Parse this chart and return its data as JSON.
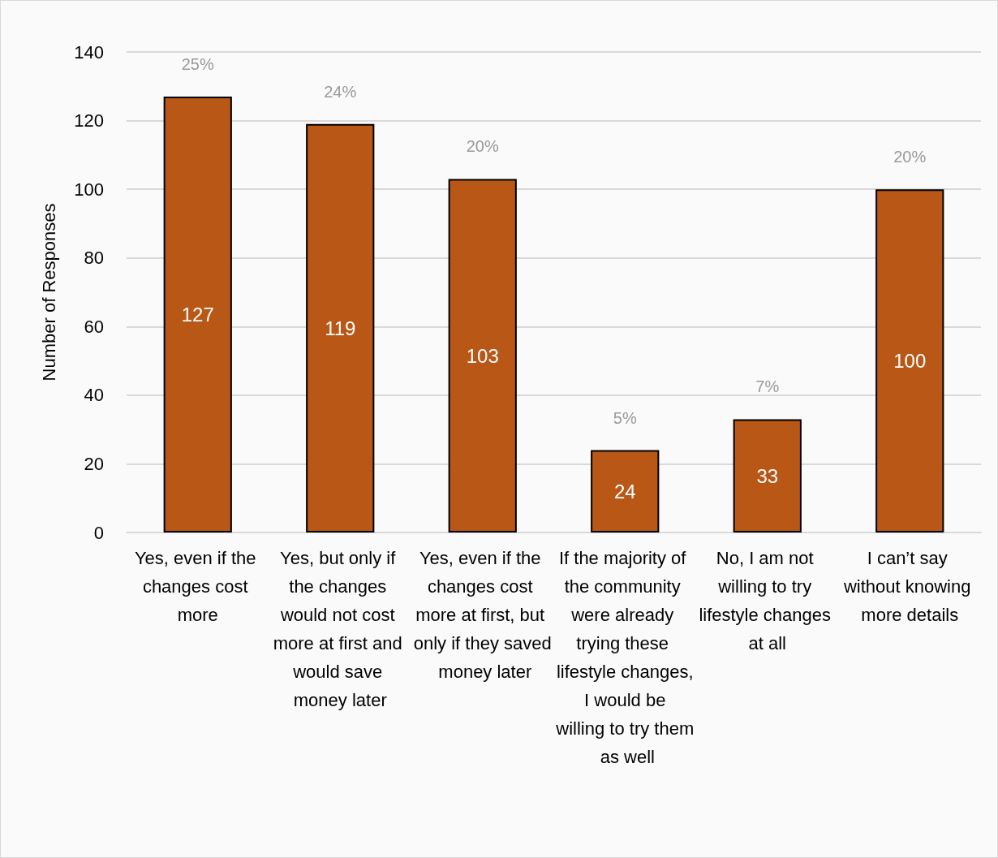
{
  "chart_data": {
    "type": "bar",
    "ylabel": "Number of Responses",
    "categories": [
      "Yes, even if the changes cost more",
      "Yes, but only if the changes would not cost more at first and would save money later",
      "Yes, even if the changes cost more at first, but only if they saved money later",
      "If the majority of the community were already trying these lifestyle changes, I would be willing to try them as well",
      "No, I am not willing to try lifestyle changes at all",
      "I can’t say without knowing more details"
    ],
    "values": [
      127,
      119,
      103,
      24,
      33,
      100
    ],
    "color": "#b85716",
    "ylim": [
      0,
      140
    ],
    "yticks": [
      0,
      20,
      40,
      60,
      80,
      100,
      120,
      140
    ],
    "grid": "y",
    "data_labels": true,
    "annotations": [
      "25%",
      "24%",
      "20%",
      "5%",
      "7%",
      "20%"
    ]
  }
}
